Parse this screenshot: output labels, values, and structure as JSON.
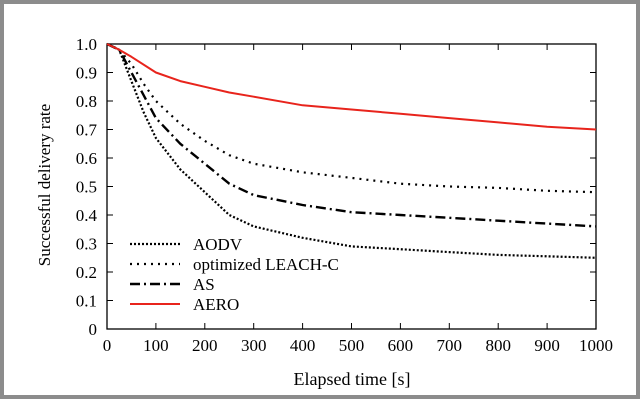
{
  "chart_data": {
    "type": "line",
    "title": "",
    "xlabel": "Elapsed time [s]",
    "ylabel": "Successful delivery rate",
    "xlim": [
      0,
      1000
    ],
    "ylim": [
      0,
      1.0
    ],
    "xticks": [
      0,
      100,
      200,
      300,
      400,
      500,
      600,
      700,
      800,
      900,
      1000
    ],
    "yticks": [
      "0",
      "0.1",
      "0.2",
      "0.3",
      "0.4",
      "0.5",
      "0.6",
      "0.7",
      "0.8",
      "0.9",
      "1.0"
    ],
    "legend_position": "bottom-left",
    "grid": false,
    "series": [
      {
        "name": "AODV",
        "style": "dotted-dense",
        "color": "#000000",
        "points": [
          [
            0,
            1.0
          ],
          [
            25,
            0.98
          ],
          [
            50,
            0.87
          ],
          [
            75,
            0.76
          ],
          [
            100,
            0.67
          ],
          [
            150,
            0.56
          ],
          [
            200,
            0.48
          ],
          [
            250,
            0.4
          ],
          [
            300,
            0.36
          ],
          [
            400,
            0.32
          ],
          [
            500,
            0.29
          ],
          [
            600,
            0.28
          ],
          [
            700,
            0.27
          ],
          [
            800,
            0.26
          ],
          [
            900,
            0.255
          ],
          [
            1000,
            0.25
          ]
        ]
      },
      {
        "name": "optimized LEACH-C",
        "style": "dotted",
        "color": "#000000",
        "points": [
          [
            0,
            1.0
          ],
          [
            25,
            0.98
          ],
          [
            50,
            0.93
          ],
          [
            75,
            0.86
          ],
          [
            100,
            0.8
          ],
          [
            150,
            0.72
          ],
          [
            200,
            0.66
          ],
          [
            250,
            0.61
          ],
          [
            300,
            0.58
          ],
          [
            400,
            0.55
          ],
          [
            500,
            0.53
          ],
          [
            600,
            0.51
          ],
          [
            700,
            0.5
          ],
          [
            800,
            0.495
          ],
          [
            900,
            0.485
          ],
          [
            1000,
            0.48
          ]
        ]
      },
      {
        "name": "AS",
        "style": "dash-dot",
        "color": "#000000",
        "points": [
          [
            0,
            1.0
          ],
          [
            25,
            0.98
          ],
          [
            50,
            0.9
          ],
          [
            75,
            0.82
          ],
          [
            100,
            0.74
          ],
          [
            150,
            0.65
          ],
          [
            200,
            0.58
          ],
          [
            250,
            0.51
          ],
          [
            300,
            0.47
          ],
          [
            400,
            0.435
          ],
          [
            500,
            0.41
          ],
          [
            600,
            0.4
          ],
          [
            700,
            0.39
          ],
          [
            800,
            0.38
          ],
          [
            900,
            0.37
          ],
          [
            1000,
            0.36
          ]
        ]
      },
      {
        "name": "AERO",
        "style": "solid",
        "color": "#e8241c",
        "points": [
          [
            0,
            1.0
          ],
          [
            25,
            0.98
          ],
          [
            50,
            0.955
          ],
          [
            100,
            0.9
          ],
          [
            150,
            0.87
          ],
          [
            200,
            0.85
          ],
          [
            250,
            0.83
          ],
          [
            300,
            0.815
          ],
          [
            400,
            0.785
          ],
          [
            500,
            0.77
          ],
          [
            600,
            0.755
          ],
          [
            700,
            0.74
          ],
          [
            800,
            0.725
          ],
          [
            900,
            0.71
          ],
          [
            1000,
            0.7
          ]
        ]
      }
    ]
  }
}
